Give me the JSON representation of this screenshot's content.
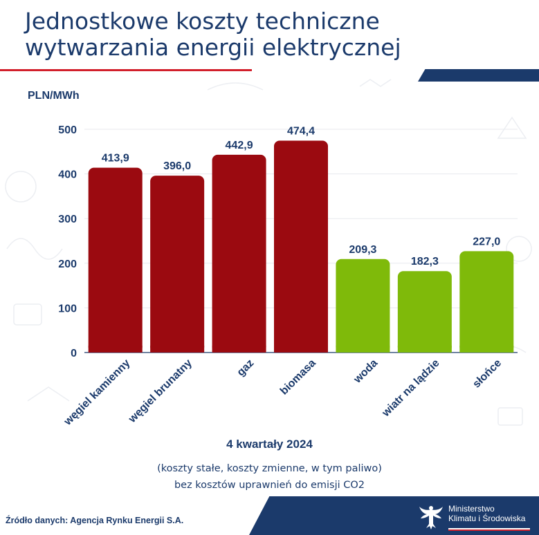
{
  "title": [
    "Jednostkowe koszty techniczne",
    "wytwarzania energii elektrycznej"
  ],
  "colors": {
    "title": "#1b3a6b",
    "fossil_bar": "#9b0a10",
    "renewable_bar": "#7fba0a",
    "accent_red": "#d21f2b",
    "navy": "#1b3a6b"
  },
  "chart_data": {
    "type": "bar",
    "ylabel": "PLN/MWh",
    "xlabel": "4 kwartały 2024",
    "ylim": [
      0,
      500
    ],
    "yticks": [
      0,
      100,
      200,
      300,
      400,
      500
    ],
    "grid": true,
    "categories": [
      "węgiel kamienny",
      "węgiel brunatny",
      "gaz",
      "biomasa",
      "woda",
      "wiatr na lądzie",
      "słońce"
    ],
    "values": [
      413.9,
      396.0,
      442.9,
      474.4,
      209.3,
      182.3,
      227.0
    ],
    "value_labels": [
      "413,9",
      "396,0",
      "442,9",
      "474,4",
      "209,3",
      "182,3",
      "227,0"
    ],
    "bar_colors": [
      "#9b0a10",
      "#9b0a10",
      "#9b0a10",
      "#9b0a10",
      "#7fba0a",
      "#7fba0a",
      "#7fba0a"
    ]
  },
  "notes": [
    "(koszty stałe, koszty zmienne, w tym paliwo)",
    "bez kosztów uprawnień do emisji CO2"
  ],
  "footer": {
    "source": "Źródło danych: Agencja Rynku Energii S.A.",
    "ministry_line1": "Ministerstwo",
    "ministry_line2": "Klimatu i Środowiska",
    "eagle_icon": "polish-eagle-emblem-icon"
  }
}
